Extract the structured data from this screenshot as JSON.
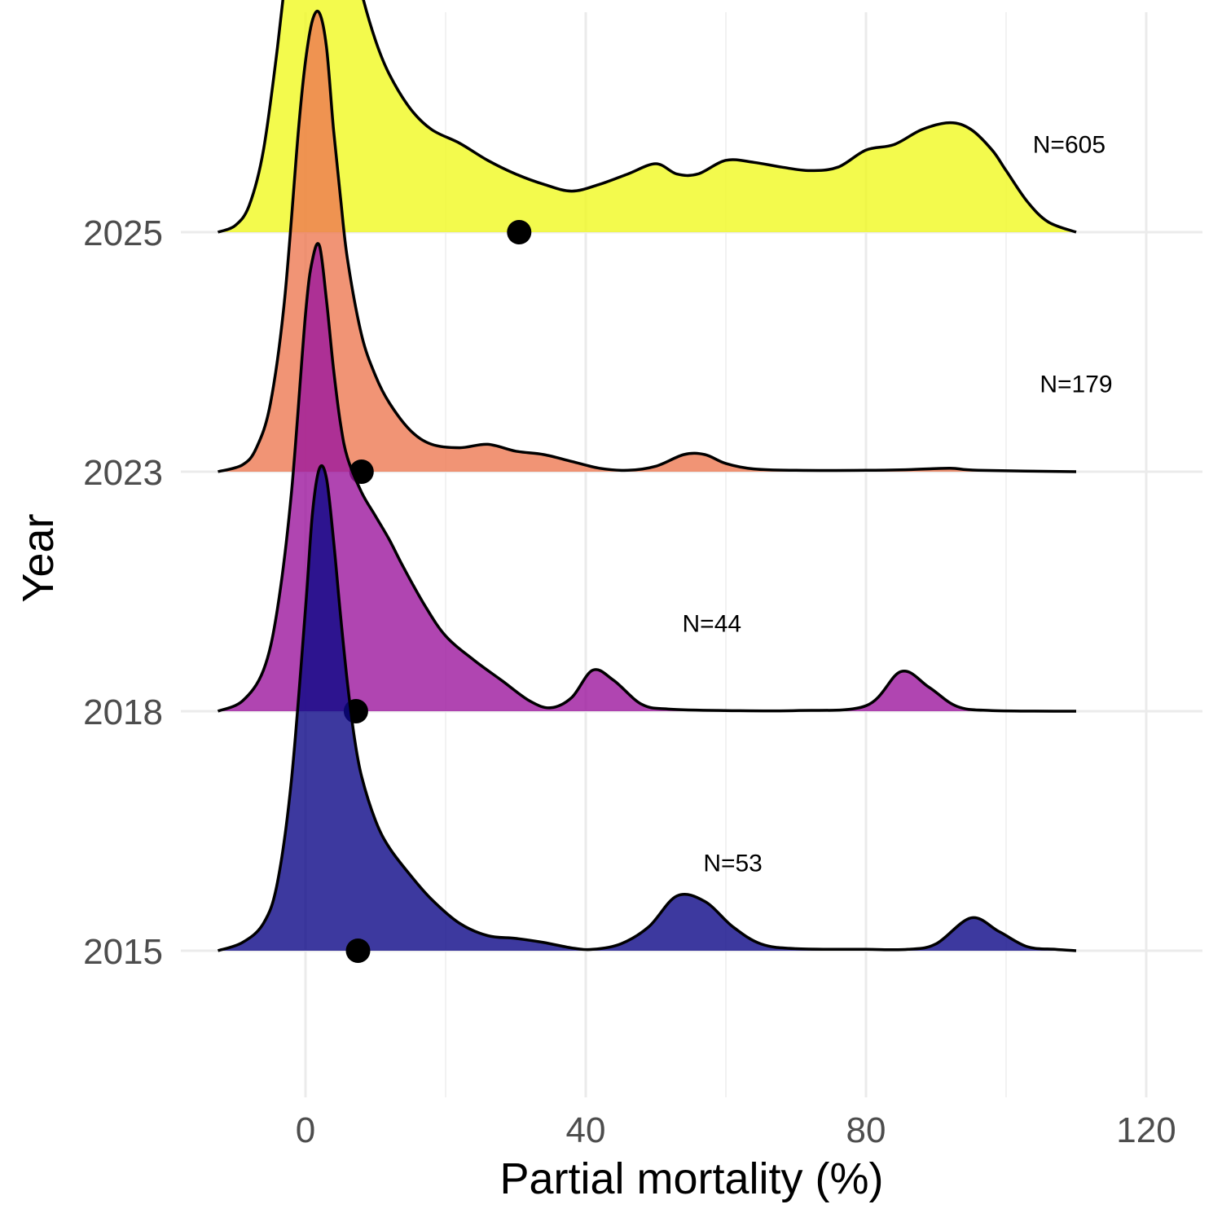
{
  "chart_data": {
    "type": "ridgeline",
    "xlabel": "Partial mortality (%)",
    "ylabel": "Year",
    "xlim": [
      -18,
      128
    ],
    "x_ticks": [
      0,
      40,
      80,
      120
    ],
    "x_tick_labels": [
      "0",
      "40",
      "80",
      "120"
    ],
    "grid": true,
    "series": [
      {
        "name": "2015",
        "color": "#0d0887",
        "opacity": 0.8,
        "n_label": "N=53",
        "n_label_x": 61,
        "n_label_height": 0.116,
        "mean": 7.5,
        "density": [
          [
            -12.5,
            0
          ],
          [
            -9,
            0.012
          ],
          [
            -6,
            0.04
          ],
          [
            -4,
            0.1
          ],
          [
            -2,
            0.25
          ],
          [
            0,
            0.5
          ],
          [
            1,
            0.64
          ],
          [
            2,
            0.705
          ],
          [
            3,
            0.69
          ],
          [
            4,
            0.6
          ],
          [
            5,
            0.49
          ],
          [
            6,
            0.39
          ],
          [
            7,
            0.31
          ],
          [
            8,
            0.255
          ],
          [
            10,
            0.19
          ],
          [
            12,
            0.15
          ],
          [
            15,
            0.11
          ],
          [
            18,
            0.075
          ],
          [
            22,
            0.04
          ],
          [
            26,
            0.022
          ],
          [
            30,
            0.018
          ],
          [
            34,
            0.012
          ],
          [
            38,
            0.004
          ],
          [
            41,
            0.002
          ],
          [
            45,
            0.01
          ],
          [
            49,
            0.035
          ],
          [
            53,
            0.08
          ],
          [
            57,
            0.072
          ],
          [
            61,
            0.035
          ],
          [
            65,
            0.01
          ],
          [
            70,
            0.003
          ],
          [
            80,
            0.002
          ],
          [
            86,
            0.002
          ],
          [
            90,
            0.01
          ],
          [
            95,
            0.048
          ],
          [
            99,
            0.028
          ],
          [
            103,
            0.006
          ],
          [
            107,
            0.002
          ],
          [
            110,
            0
          ]
        ]
      },
      {
        "name": "2018",
        "color": "#9c179e",
        "opacity": 0.8,
        "n_label": "N=44",
        "n_label_x": 58,
        "n_label_height": 0.116,
        "mean": 7.2,
        "density": [
          [
            -12.5,
            0
          ],
          [
            -9,
            0.015
          ],
          [
            -6,
            0.06
          ],
          [
            -4,
            0.15
          ],
          [
            -2,
            0.32
          ],
          [
            0,
            0.58
          ],
          [
            1,
            0.66
          ],
          [
            2,
            0.68
          ],
          [
            3,
            0.6
          ],
          [
            4,
            0.5
          ],
          [
            5,
            0.42
          ],
          [
            6,
            0.37
          ],
          [
            8,
            0.32
          ],
          [
            10,
            0.285
          ],
          [
            12,
            0.25
          ],
          [
            14,
            0.21
          ],
          [
            17,
            0.155
          ],
          [
            20,
            0.11
          ],
          [
            24,
            0.075
          ],
          [
            28,
            0.045
          ],
          [
            32,
            0.015
          ],
          [
            35,
            0.005
          ],
          [
            38,
            0.02
          ],
          [
            41,
            0.06
          ],
          [
            44,
            0.045
          ],
          [
            48,
            0.01
          ],
          [
            52,
            0.003
          ],
          [
            60,
            0.001
          ],
          [
            70,
            0.001
          ],
          [
            80,
            0.008
          ],
          [
            85,
            0.058
          ],
          [
            89,
            0.035
          ],
          [
            93,
            0.007
          ],
          [
            98,
            0.001
          ],
          [
            110,
            0
          ]
        ]
      },
      {
        "name": "2023",
        "color": "#ed7953",
        "opacity": 0.8,
        "n_label": "N=179",
        "n_label_x": 110,
        "n_label_height": 0.116,
        "mean": 8,
        "density": [
          [
            -12.5,
            0
          ],
          [
            -9,
            0.01
          ],
          [
            -7,
            0.035
          ],
          [
            -5,
            0.1
          ],
          [
            -3,
            0.25
          ],
          [
            -1,
            0.5
          ],
          [
            0,
            0.6
          ],
          [
            1,
            0.66
          ],
          [
            2,
            0.67
          ],
          [
            3,
            0.62
          ],
          [
            4,
            0.5
          ],
          [
            5,
            0.4
          ],
          [
            6,
            0.31
          ],
          [
            8,
            0.2
          ],
          [
            10,
            0.14
          ],
          [
            12,
            0.1
          ],
          [
            15,
            0.06
          ],
          [
            18,
            0.04
          ],
          [
            22,
            0.035
          ],
          [
            26,
            0.04
          ],
          [
            30,
            0.03
          ],
          [
            34,
            0.025
          ],
          [
            38,
            0.015
          ],
          [
            42,
            0.005
          ],
          [
            46,
            0.002
          ],
          [
            50,
            0.008
          ],
          [
            54,
            0.025
          ],
          [
            57,
            0.025
          ],
          [
            60,
            0.012
          ],
          [
            64,
            0.004
          ],
          [
            70,
            0.002
          ],
          [
            80,
            0.002
          ],
          [
            86,
            0.003
          ],
          [
            92,
            0.005
          ],
          [
            96,
            0.002
          ],
          [
            110,
            0
          ]
        ]
      },
      {
        "name": "2025",
        "color": "#f0f921",
        "opacity": 0.8,
        "n_label": "N=605",
        "n_label_x": 109,
        "n_label_height": 0.116,
        "mean": 30.5,
        "density": [
          [
            -12.5,
            0
          ],
          [
            -10,
            0.01
          ],
          [
            -8,
            0.04
          ],
          [
            -6,
            0.12
          ],
          [
            -4,
            0.27
          ],
          [
            -2,
            0.45
          ],
          [
            0,
            0.6
          ],
          [
            0.8,
            0.64
          ],
          [
            1.5,
            0.65
          ],
          [
            3,
            0.61
          ],
          [
            4,
            0.55
          ],
          [
            6,
            0.44
          ],
          [
            8,
            0.35
          ],
          [
            10,
            0.28
          ],
          [
            12,
            0.23
          ],
          [
            15,
            0.18
          ],
          [
            18,
            0.15
          ],
          [
            22,
            0.13
          ],
          [
            26,
            0.105
          ],
          [
            30,
            0.085
          ],
          [
            34,
            0.07
          ],
          [
            38,
            0.06
          ],
          [
            42,
            0.07
          ],
          [
            46,
            0.085
          ],
          [
            50,
            0.1
          ],
          [
            53,
            0.085
          ],
          [
            56,
            0.085
          ],
          [
            60,
            0.105
          ],
          [
            64,
            0.102
          ],
          [
            68,
            0.095
          ],
          [
            72,
            0.09
          ],
          [
            76,
            0.095
          ],
          [
            80,
            0.12
          ],
          [
            84,
            0.128
          ],
          [
            88,
            0.15
          ],
          [
            92,
            0.16
          ],
          [
            95,
            0.15
          ],
          [
            98,
            0.12
          ],
          [
            100,
            0.09
          ],
          [
            103,
            0.045
          ],
          [
            106,
            0.015
          ],
          [
            110,
            0
          ]
        ]
      }
    ]
  }
}
